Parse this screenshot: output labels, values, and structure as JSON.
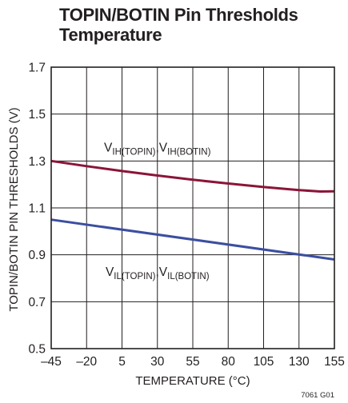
{
  "chart_data": {
    "type": "line",
    "title_lines": [
      "TOPIN/BOTIN Pin Thresholds",
      "Temperature"
    ],
    "xlabel": "TEMPERATURE (°C)",
    "ylabel": "TOPIN/BOTIN PIN THRESHOLDS (V)",
    "xlim": [
      -45,
      155
    ],
    "ylim": [
      0.5,
      1.7
    ],
    "xticks": [
      -45,
      -20,
      5,
      30,
      55,
      80,
      105,
      130,
      155
    ],
    "xtick_labels": [
      "–45",
      "–20",
      "5",
      "30",
      "55",
      "80",
      "105",
      "130",
      "155"
    ],
    "yticks": [
      0.5,
      0.7,
      0.9,
      1.1,
      1.3,
      1.5,
      1.7
    ],
    "ytick_labels": [
      "0.5",
      "0.7",
      "0.9",
      "1.1",
      "1.3",
      "1.5",
      "1.7"
    ],
    "grid": true,
    "series": [
      {
        "label_main": [
          "V",
          "IH(TOPIN)",
          ",V",
          "IH(BOTIN)"
        ],
        "label_at": [
          30,
          1.34
        ],
        "color": "#8b1538",
        "x": [
          -45,
          -20,
          5,
          30,
          55,
          80,
          105,
          130,
          145,
          155
        ],
        "y": [
          1.3,
          1.278,
          1.257,
          1.238,
          1.22,
          1.204,
          1.189,
          1.176,
          1.17,
          1.171
        ]
      },
      {
        "label_main": [
          "V",
          "IL(TOPIN)",
          ",V",
          "IL(BOTIN)"
        ],
        "label_at": [
          30,
          0.81
        ],
        "color": "#3b4fa0",
        "x": [
          -45,
          155
        ],
        "y": [
          1.05,
          0.88
        ]
      }
    ],
    "figure_code": "7061 G01"
  }
}
